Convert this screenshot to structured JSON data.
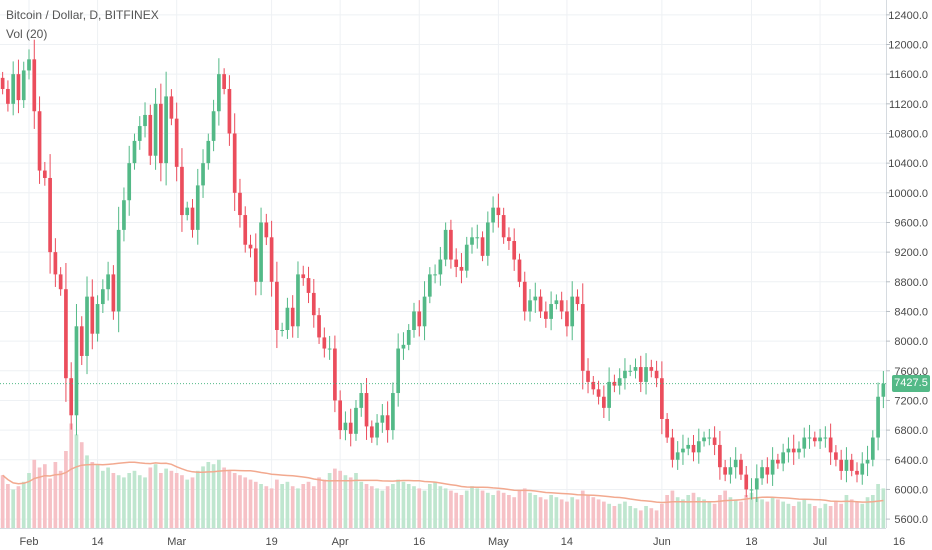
{
  "legend": {
    "title": "Bitcoin / Dollar, D, BITFINEX",
    "indicator": "Vol (20)"
  },
  "colors": {
    "up": "#53b987",
    "down": "#eb4d5c",
    "up_volume": "#bfe6cf",
    "down_volume": "#f6c1c6",
    "volume_ma": "#f2a98f",
    "last_price": "#53b987",
    "grid": "#eef1f4",
    "axis_text": "#4a4a4a"
  },
  "last_price_label": "7427.5",
  "chart_data": {
    "type": "candlestick",
    "title": "Bitcoin / Dollar, D, BITFINEX",
    "indicator": "Vol (20)",
    "y_ticks": [
      "12400.0",
      "12000.0",
      "11600.0",
      "11200.0",
      "10800.0",
      "10400.0",
      "10000.0",
      "9600.0",
      "9200.0",
      "8800.0",
      "8400.0",
      "8000.0",
      "7600.0",
      "7200.0",
      "6800.0",
      "6400.0",
      "6000.0",
      "5600.0"
    ],
    "ylim": [
      5480,
      12600
    ],
    "x_ticks": [
      {
        "label": "Feb",
        "bar": 5
      },
      {
        "label": "14",
        "bar": 18
      },
      {
        "label": "Mar",
        "bar": 33
      },
      {
        "label": "19",
        "bar": 51
      },
      {
        "label": "Apr",
        "bar": 64
      },
      {
        "label": "16",
        "bar": 79
      },
      {
        "label": "May",
        "bar": 94
      },
      {
        "label": "14",
        "bar": 107
      },
      {
        "label": "Jun",
        "bar": 125
      },
      {
        "label": "18",
        "bar": 142
      },
      {
        "label": "Jul",
        "bar": 155
      },
      {
        "label": "16",
        "bar": 170
      }
    ],
    "last_price": 7427.5,
    "closes": [
      11400,
      11200,
      11600,
      11250,
      11650,
      11800,
      11100,
      10300,
      10200,
      9200,
      8900,
      8700,
      7500,
      7000,
      8200,
      7800,
      8600,
      8100,
      8500,
      8700,
      8900,
      8400,
      9500,
      9900,
      10400,
      10700,
      10900,
      11050,
      10500,
      11200,
      10400,
      11300,
      11000,
      10350,
      9700,
      9800,
      9500,
      10100,
      10400,
      10700,
      11100,
      11600,
      11400,
      10800,
      10000,
      9700,
      9300,
      9250,
      8800,
      9600,
      9400,
      8800,
      8150,
      8150,
      8450,
      8200,
      8900,
      8850,
      8650,
      8350,
      8050,
      7900,
      7900,
      7200,
      6800,
      6900,
      6750,
      7100,
      7300,
      6850,
      6700,
      6900,
      7000,
      6800,
      7300,
      7900,
      7950,
      8150,
      8400,
      8200,
      8600,
      8900,
      8900,
      9100,
      9500,
      9100,
      9000,
      8950,
      9300,
      9400,
      9400,
      9150,
      9600,
      9800,
      9700,
      9400,
      9350,
      9100,
      8800,
      8400,
      8550,
      8600,
      8400,
      8300,
      8500,
      8550,
      8400,
      8200,
      8600,
      8500,
      7600,
      7450,
      7350,
      7250,
      7100,
      7450,
      7400,
      7500,
      7600,
      7600,
      7650,
      7450,
      7650,
      7600,
      7500,
      6950,
      6700,
      6400,
      6500,
      6550,
      6600,
      6500,
      6650,
      6700,
      6700,
      6600,
      6300,
      6200,
      6300,
      6400,
      6200,
      6000,
      6000,
      6150,
      6300,
      6200,
      6400,
      6350,
      6500,
      6550,
      6500,
      6550,
      6700,
      6700,
      6650,
      6700,
      6700,
      6500,
      6400,
      6250,
      6400,
      6250,
      6200,
      6350,
      6400,
      6700,
      7250,
      7427.5
    ],
    "volume": {
      "ma_period": 20,
      "values": [
        48,
        40,
        35,
        38,
        42,
        50,
        62,
        55,
        58,
        45,
        60,
        52,
        70,
        95,
        85,
        78,
        66,
        60,
        58,
        52,
        55,
        50,
        48,
        46,
        50,
        52,
        48,
        46,
        55,
        58,
        50,
        54,
        52,
        50,
        48,
        44,
        46,
        52,
        56,
        60,
        58,
        62,
        55,
        52,
        50,
        48,
        46,
        44,
        42,
        40,
        38,
        36,
        44,
        40,
        42,
        38,
        36,
        40,
        42,
        38,
        46,
        44,
        50,
        54,
        52,
        48,
        46,
        50,
        42,
        40,
        38,
        36,
        34,
        38,
        40,
        44,
        42,
        40,
        38,
        36,
        34,
        40,
        42,
        38,
        36,
        34,
        32,
        30,
        34,
        38,
        36,
        34,
        32,
        30,
        34,
        32,
        30,
        28,
        34,
        36,
        32,
        30,
        28,
        26,
        30,
        28,
        26,
        24,
        28,
        26,
        34,
        30,
        28,
        26,
        24,
        22,
        20,
        22,
        24,
        20,
        18,
        16,
        20,
        18,
        16,
        22,
        30,
        34,
        28,
        26,
        30,
        32,
        28,
        26,
        24,
        22,
        30,
        34,
        28,
        26,
        24,
        30,
        32,
        28,
        26,
        24,
        28,
        26,
        24,
        22,
        20,
        24,
        26,
        22,
        20,
        18,
        22,
        20,
        24,
        22,
        30,
        26,
        24,
        22,
        28,
        30,
        40,
        36
      ]
    }
  }
}
